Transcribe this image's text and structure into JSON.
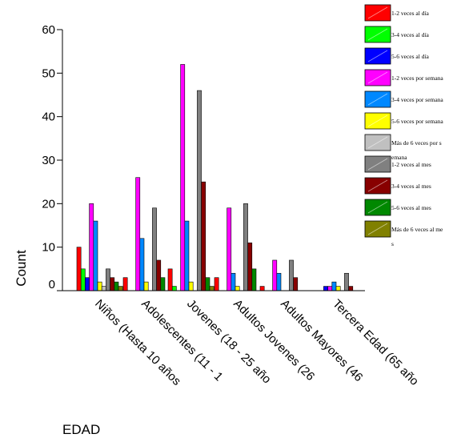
{
  "chart_data": {
    "type": "bar",
    "xlabel": "EDAD",
    "ylabel": "Count",
    "ylim": [
      0,
      60
    ],
    "yticks": [
      0,
      10,
      20,
      30,
      40,
      50,
      60
    ],
    "legend_position": "right",
    "categories": [
      "Niños (Hasta 10 años",
      "Adolescentes (11 - 1",
      "Jovenes (18 - 25 año",
      "Adultos Jovenes (26",
      "Adultos Mayores (46",
      "Tercera Edad (65 año"
    ],
    "series": [
      {
        "name": "1-2 veces al día",
        "color": "#ff0000",
        "values": [
          10,
          3,
          5,
          3,
          1,
          0
        ]
      },
      {
        "name": "3-4 veces al día",
        "color": "#00ff00",
        "values": [
          5,
          0,
          1,
          0,
          0,
          0
        ]
      },
      {
        "name": "5-6 veces al día",
        "color": "#0000ff",
        "values": [
          3,
          0,
          0,
          0,
          0,
          1
        ]
      },
      {
        "name": "1-2 veces por semana",
        "color": "#ff00ff",
        "values": [
          20,
          26,
          52,
          19,
          7,
          1
        ]
      },
      {
        "name": "3-4 veces por semana",
        "color": "#0088ff",
        "values": [
          16,
          12,
          16,
          4,
          4,
          2
        ]
      },
      {
        "name": "5-6 veces por semana",
        "color": "#ffff00",
        "values": [
          2,
          2,
          2,
          1,
          0,
          1
        ]
      },
      {
        "name": "Más de 6 veces por semana",
        "color": "#c0c0c0",
        "values": [
          1,
          0,
          0,
          0,
          0,
          0
        ]
      },
      {
        "name": "1-2 veces al mes",
        "color": "#808080",
        "values": [
          5,
          19,
          46,
          20,
          7,
          4
        ]
      },
      {
        "name": "3-4 veces al mes",
        "color": "#880000",
        "values": [
          3,
          7,
          25,
          11,
          3,
          1
        ]
      },
      {
        "name": "5-6 veces al mes",
        "color": "#008800",
        "values": [
          2,
          3,
          3,
          5,
          0,
          0
        ]
      },
      {
        "name": "Más de 6 veces al mes",
        "color": "#808000",
        "values": [
          1,
          0,
          1,
          0,
          0,
          0
        ]
      }
    ],
    "legend_labels": [
      [
        "1-2 veces al día"
      ],
      [
        "3-4 veces al día"
      ],
      [
        "5-6 veces al día"
      ],
      [
        "1-2 veces por semana"
      ],
      [
        "3-4 veces por semana"
      ],
      [
        "5-6 veces por semana"
      ],
      [
        "Más de 6 veces por s",
        "emana"
      ],
      [
        "1-2 veces al mes"
      ],
      [
        "3-4 veces al mes"
      ],
      [
        "5-6 veces al mes"
      ],
      [
        "Más de 6 veces al me",
        "s"
      ]
    ]
  }
}
